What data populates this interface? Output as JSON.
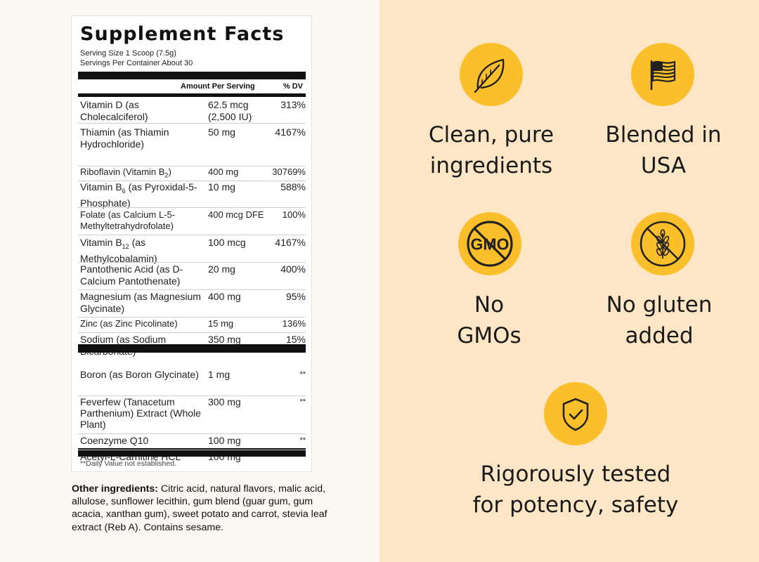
{
  "facts": {
    "title": "Supplement Facts",
    "serving_size": "Serving Size 1 Scoop (7.5g)",
    "servings_per_container": "Servings Per Container About 30",
    "col_amount": "Amount Per Serving",
    "col_dv": "% DV",
    "vitamins": [
      {
        "name": "Vitamin D (as Cholecalciferol)",
        "amount": "62.5 mcg (2,500 IU)",
        "dv": "313%"
      },
      {
        "name": "Thiamin (as Thiamin Hydrochloride)",
        "amount": "50 mg",
        "dv": "4167%"
      },
      {
        "name": "Riboflavin (Vitamin B",
        "sub": "2",
        "name_after": ")",
        "amount": "400 mg",
        "dv": "30769%"
      },
      {
        "name": "Vitamin B",
        "sub": "6",
        "name_after": " (as Pyroxidal-5-Phosphate)",
        "amount": "10 mg",
        "dv": "588%"
      },
      {
        "name": "Folate (as Calcium L-5-Methyltetrahydrofolate)",
        "amount": "400 mcg DFE",
        "dv": "100%"
      },
      {
        "name": "Vitamin B",
        "sub": "12",
        "name_after": " (as Methylcobalamin)",
        "amount": "100 mcg",
        "dv": "4167%"
      },
      {
        "name": "Pantothenic Acid (as D-Calcium Pantothenate)",
        "amount": "20 mg",
        "dv": "400%"
      },
      {
        "name": "Magnesium (as Magnesium Glycinate)",
        "amount": "400 mg",
        "dv": "95%"
      },
      {
        "name": "Zinc (as Zinc Picolinate)",
        "amount": "15 mg",
        "dv": "136%"
      },
      {
        "name": "Sodium (as Sodium Bicarbonate)",
        "amount": "350 mg",
        "dv": "15%"
      }
    ],
    "extras": [
      {
        "name": "Boron (as Boron Glycinate)",
        "amount": "1 mg",
        "dv": "**"
      },
      {
        "name": "Feverfew (Tanacetum Parthenium) Extract (Whole Plant)",
        "amount": "300 mg",
        "dv": "**"
      },
      {
        "name": "Coenzyme Q10",
        "amount": "100 mg",
        "dv": "**"
      },
      {
        "name": "Acetyl-L-Carnitine HCL",
        "amount": "100 mg",
        "dv": "**"
      }
    ],
    "footnote": "**Daily Value not established."
  },
  "other_ingredients": {
    "label": "Other ingredients:",
    "text": " Citric acid, natural flavors, malic acid, allulose, sunflower lecithin, gum blend (guar gum, gum acacia, xanthan gum), sweet potato and carrot, stevia leaf extract (Reb A). Contains sesame."
  },
  "features": {
    "clean": {
      "line1": "Clean, pure",
      "line2": "ingredients",
      "icon": "leaf-icon"
    },
    "usa": {
      "line1": "Blended in",
      "line2": "USA",
      "icon": "flag-icon"
    },
    "gmo": {
      "line1": "No",
      "line2": "GMOs",
      "icon": "no-gmo-icon",
      "badge_text": "GMO"
    },
    "gluten": {
      "line1": "No gluten",
      "line2": "added",
      "icon": "no-gluten-icon"
    },
    "tested": {
      "line1": "Rigorously tested",
      "line2": "for potency, safety",
      "icon": "shield-check-icon"
    }
  },
  "colors": {
    "panel_bg": "#fde6c6",
    "icon_circle": "#fbbf2b",
    "left_bg": "#fbf8f3"
  }
}
